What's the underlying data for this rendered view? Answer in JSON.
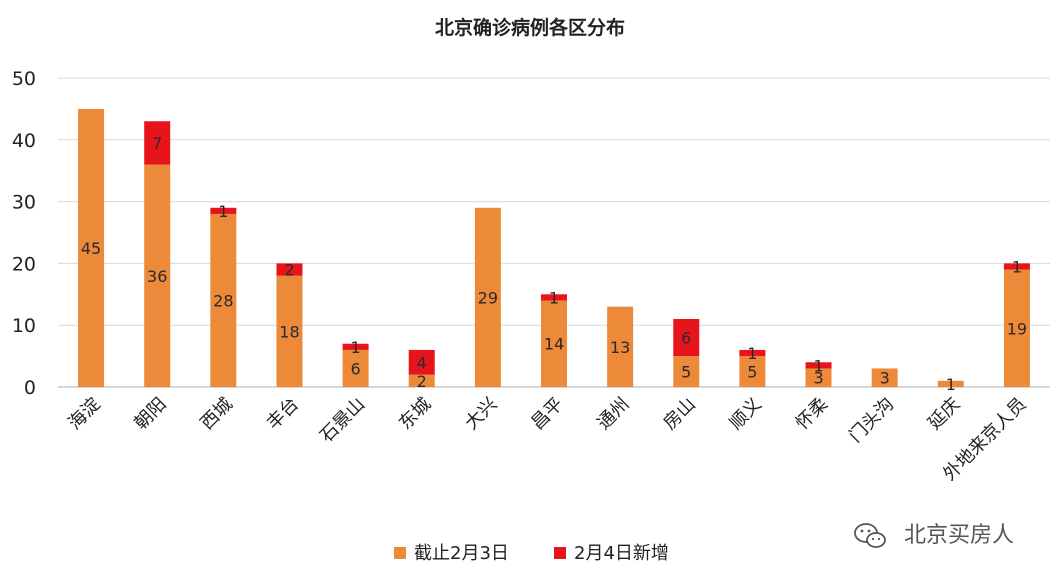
{
  "chart_data": {
    "type": "bar",
    "stacked": true,
    "title": "北京确诊病例各区分布",
    "xlabel": "",
    "ylabel": "",
    "ylim": [
      0,
      50
    ],
    "yticks": [
      0,
      10,
      20,
      30,
      40,
      50
    ],
    "grid": true,
    "legend_position": "bottom",
    "categories": [
      "海淀",
      "朝阳",
      "西城",
      "丰台",
      "石景山",
      "东城",
      "大兴",
      "昌平",
      "通州",
      "房山",
      "顺义",
      "怀柔",
      "门头沟",
      "延庆",
      "外地来京人员"
    ],
    "series": [
      {
        "name": "截止2月3日",
        "color": "#ed8a3a",
        "values": [
          45,
          36,
          28,
          18,
          6,
          2,
          29,
          14,
          13,
          5,
          5,
          3,
          3,
          1,
          19
        ],
        "labels": [
          "45",
          "36",
          "28",
          "18",
          "6",
          "2",
          "29",
          "14",
          "13",
          "5",
          "5",
          "3",
          "3",
          "1",
          "19"
        ]
      },
      {
        "name": "2月4日新增",
        "color": "#e8141b",
        "values": [
          0,
          7,
          1,
          2,
          1,
          4,
          0,
          1,
          0,
          6,
          1,
          1,
          0,
          0,
          1
        ],
        "labels": [
          "",
          "7",
          "1",
          "2",
          "1",
          "4",
          "",
          "1",
          "",
          "6",
          "1",
          "1",
          "",
          "",
          "1"
        ]
      }
    ]
  },
  "watermark": {
    "text": "北京买房人",
    "icon": "wechat-icon"
  }
}
